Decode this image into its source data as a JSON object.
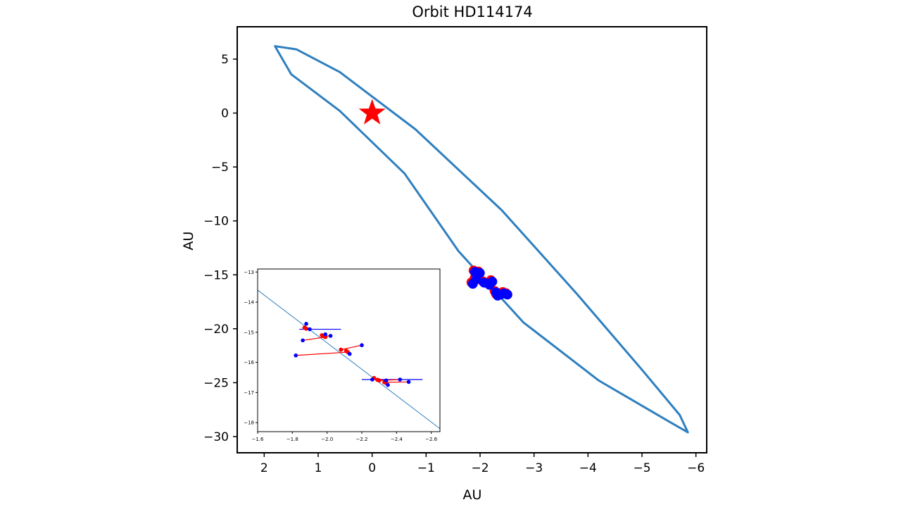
{
  "chart_data": [
    {
      "type": "line",
      "title": "Orbit HD114174",
      "xlabel": "AU",
      "ylabel": "AU",
      "xlim": [
        2.5,
        -6.2
      ],
      "ylim": [
        -31.5,
        8
      ],
      "x_ticks": [
        2,
        1,
        0,
        -1,
        -2,
        -3,
        -4,
        -5,
        -6
      ],
      "x_tick_labels": [
        "2",
        "1",
        "0",
        "−1",
        "−2",
        "−3",
        "−4",
        "−5",
        "−6"
      ],
      "y_ticks": [
        5,
        0,
        -5,
        -10,
        -15,
        -20,
        -25,
        -30
      ],
      "y_tick_labels": [
        "5",
        "0",
        "−5",
        "−10",
        "−15",
        "−20",
        "−25",
        "−30"
      ],
      "orbit": {
        "color": "#2e7fbf",
        "points": [
          [
            1.8,
            6.2
          ],
          [
            1.5,
            3.6
          ],
          [
            0.6,
            0.2
          ],
          [
            -0.6,
            -5.6
          ],
          [
            -1.6,
            -12.8
          ],
          [
            -2.8,
            -19.4
          ],
          [
            -4.2,
            -24.8
          ],
          [
            -5.5,
            -28.6
          ],
          [
            -5.85,
            -29.6
          ],
          [
            -5.7,
            -28.0
          ],
          [
            -5.0,
            -23.8
          ],
          [
            -3.8,
            -16.8
          ],
          [
            -2.4,
            -9.0
          ],
          [
            -0.8,
            -1.5
          ],
          [
            0.6,
            3.8
          ],
          [
            1.4,
            5.9
          ],
          [
            1.8,
            6.2
          ]
        ]
      },
      "star": {
        "x": 0,
        "y": 0,
        "color": "#ff0000"
      },
      "observations": [
        {
          "x": -1.88,
          "y": -14.6
        },
        {
          "x": -1.92,
          "y": -14.9
        },
        {
          "x": -1.97,
          "y": -14.7
        },
        {
          "x": -1.84,
          "y": -15.7
        },
        {
          "x": -1.9,
          "y": -15.3
        },
        {
          "x": -2.05,
          "y": -15.6
        },
        {
          "x": -2.2,
          "y": -15.5
        },
        {
          "x": -2.15,
          "y": -15.8
        },
        {
          "x": -2.27,
          "y": -16.5
        },
        {
          "x": -2.35,
          "y": -16.7
        },
        {
          "x": -2.42,
          "y": -16.6
        },
        {
          "x": -2.48,
          "y": -16.7
        },
        {
          "x": -2.3,
          "y": -16.8
        }
      ],
      "observation_color": "#0000ff",
      "model_color": "#ff0000"
    },
    {
      "type": "scatter",
      "xlim": [
        -1.6,
        -2.65
      ],
      "ylim": [
        -18.3,
        -12.9
      ],
      "x_ticks": [
        -1.6,
        -1.8,
        -2.0,
        -2.2,
        -2.4,
        -2.6
      ],
      "x_tick_labels": [
        "−1.6",
        "−1.8",
        "−2.0",
        "−2.2",
        "−2.4",
        "−2.6"
      ],
      "y_ticks": [
        -13,
        -14,
        -15,
        -16,
        -17,
        -18
      ],
      "y_tick_labels": [
        "−13",
        "−14",
        "−15",
        "−16",
        "−17",
        "−18"
      ],
      "orbit_segment": [
        [
          -1.6,
          -13.6
        ],
        [
          -2.65,
          -18.2
        ]
      ],
      "pairs": [
        {
          "model": [
            -1.87,
            -14.85
          ],
          "obs": [
            -1.88,
            -14.72
          ],
          "err_x": [
            -1.88,
            -1.88
          ]
        },
        {
          "model": [
            -1.88,
            -14.88
          ],
          "obs": [
            -1.9,
            -14.9
          ],
          "err_x": [
            -1.84,
            -2.08
          ]
        },
        {
          "model": [
            -1.97,
            -15.1
          ],
          "obs": [
            -1.99,
            -15.07
          ],
          "err_x": [
            -1.99,
            -1.99
          ]
        },
        {
          "model": [
            -1.98,
            -15.13
          ],
          "obs": [
            -2.02,
            -15.12
          ],
          "err_x": [
            -2.02,
            -2.02
          ]
        },
        {
          "model": [
            -1.99,
            -15.16
          ],
          "obs": [
            -1.86,
            -15.27
          ],
          "err_x": [
            -1.86,
            -1.86
          ]
        },
        {
          "model": [
            -2.08,
            -15.58
          ],
          "obs": [
            -2.2,
            -15.43
          ],
          "err_x": [
            -2.2,
            -2.2
          ]
        },
        {
          "model": [
            -2.11,
            -15.62
          ],
          "obs": [
            -2.13,
            -15.72
          ],
          "err_x": [
            -2.13,
            -2.13
          ]
        },
        {
          "model": [
            -2.12,
            -15.66
          ],
          "obs": [
            -1.82,
            -15.77
          ],
          "err_x": [
            -1.82,
            -1.82
          ]
        },
        {
          "model": [
            -2.27,
            -16.52
          ],
          "obs": [
            -2.26,
            -16.57
          ],
          "err_x": [
            -2.2,
            -2.55
          ]
        },
        {
          "model": [
            -2.29,
            -16.58
          ],
          "obs": [
            -2.34,
            -16.6
          ],
          "err_x": [
            -2.34,
            -2.34
          ]
        },
        {
          "model": [
            -2.3,
            -16.6
          ],
          "obs": [
            -2.42,
            -16.57
          ],
          "err_x": [
            -2.42,
            -2.42
          ]
        },
        {
          "model": [
            -2.33,
            -16.66
          ],
          "obs": [
            -2.47,
            -16.65
          ],
          "err_x": [
            -2.47,
            -2.47
          ]
        },
        {
          "model": [
            -2.34,
            -16.68
          ],
          "obs": [
            -2.35,
            -16.75
          ],
          "err_x": [
            -2.35,
            -2.35
          ]
        }
      ]
    }
  ]
}
